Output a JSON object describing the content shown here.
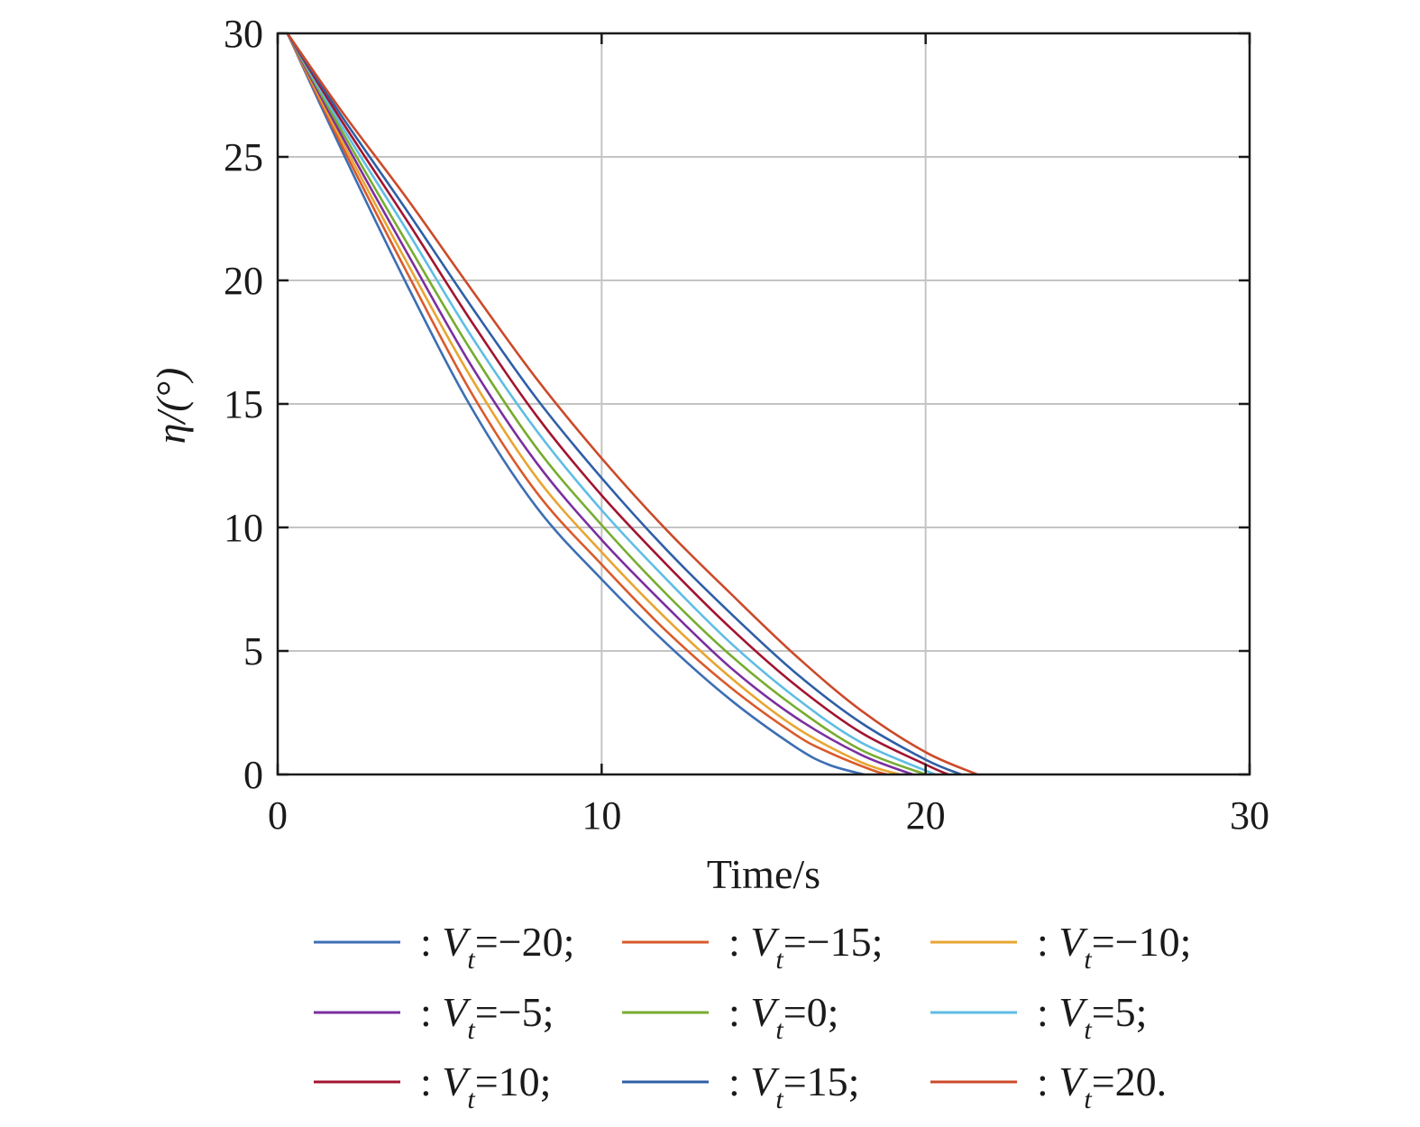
{
  "chart_data": {
    "type": "line",
    "xlabel": "Time/s",
    "ylabel": "η/(°)",
    "xlim": [
      0,
      30
    ],
    "ylim": [
      0,
      30
    ],
    "xticks": [
      0,
      10,
      20,
      30
    ],
    "yticks": [
      0,
      5,
      10,
      15,
      20,
      25,
      30
    ],
    "xtick_labels": [
      "0",
      "10",
      "20",
      "30"
    ],
    "ytick_labels": [
      "0",
      "5",
      "10",
      "15",
      "20",
      "25",
      "30"
    ],
    "grid": true,
    "legend_position": "bottom",
    "series": [
      {
        "name": ": Vt=−20;",
        "label": {
          "prefix": ": ",
          "var": "V",
          "sub": "t",
          "rest": "=−20;"
        },
        "color": "#3d6eb4",
        "x": [
          0.3,
          2,
          4,
          6,
          8,
          10,
          12,
          14,
          16,
          17,
          18.1
        ],
        "y": [
          30,
          25.2,
          19.8,
          14.8,
          10.8,
          7.9,
          5.3,
          3.0,
          1.1,
          0.4,
          0
        ]
      },
      {
        "name": ": Vt=−15;",
        "label": {
          "prefix": ": ",
          "var": "V",
          "sub": "t",
          "rest": "=−15;"
        },
        "color": "#d95a2b",
        "x": [
          0.3,
          2,
          4,
          6,
          8,
          10,
          12,
          14,
          16,
          17,
          18.3,
          18.8
        ],
        "y": [
          30,
          25.4,
          20.3,
          15.4,
          11.4,
          8.5,
          5.8,
          3.5,
          1.6,
          0.9,
          0.2,
          0
        ]
      },
      {
        "name": ": Vt=−10;",
        "label": {
          "prefix": ": ",
          "var": "V",
          "sub": "t",
          "rest": "=−10;"
        },
        "color": "#e8a532",
        "x": [
          0.3,
          2,
          4,
          6,
          8,
          10,
          12,
          14,
          16,
          18,
          19.2
        ],
        "y": [
          30,
          25.6,
          20.7,
          16.0,
          12.0,
          9.0,
          6.3,
          3.9,
          1.9,
          0.5,
          0
        ]
      },
      {
        "name": ": Vt=−5;",
        "label": {
          "prefix": ": ",
          "var": "V",
          "sub": "t",
          "rest": "=−5;"
        },
        "color": "#7b2f9e",
        "x": [
          0.3,
          2,
          4,
          6,
          8,
          10,
          12,
          14,
          16,
          18,
          19.6
        ],
        "y": [
          30,
          25.8,
          21.1,
          16.5,
          12.6,
          9.5,
          6.8,
          4.3,
          2.3,
          0.8,
          0
        ]
      },
      {
        "name": ": Vt=0;",
        "label": {
          "prefix": ": ",
          "var": "V",
          "sub": "t",
          "rest": "=0;"
        },
        "color": "#77ac30",
        "x": [
          0.3,
          2,
          4,
          6,
          8,
          10,
          12,
          14,
          16,
          18,
          20
        ],
        "y": [
          30,
          26.0,
          21.5,
          17.1,
          13.2,
          10.1,
          7.3,
          4.8,
          2.7,
          1.0,
          0
        ]
      },
      {
        "name": ": Vt=5;",
        "label": {
          "prefix": ": ",
          "var": "V",
          "sub": "t",
          "rest": "=5;"
        },
        "color": "#5fbde4",
        "x": [
          0.3,
          2,
          4,
          6,
          8,
          10,
          12,
          14,
          16,
          18,
          20.3
        ],
        "y": [
          30,
          26.2,
          22.0,
          17.7,
          13.9,
          10.7,
          7.9,
          5.3,
          3.1,
          1.3,
          0
        ]
      },
      {
        "name": ": Vt=10;",
        "label": {
          "prefix": ": ",
          "var": "V",
          "sub": "t",
          "rest": "=10;"
        },
        "color": "#a2142f",
        "x": [
          0.3,
          2,
          4,
          6,
          8,
          10,
          12,
          14,
          16,
          18,
          20,
          20.7
        ],
        "y": [
          30,
          26.4,
          22.4,
          18.3,
          14.5,
          11.3,
          8.5,
          5.9,
          3.6,
          1.7,
          0.4,
          0
        ]
      },
      {
        "name": ": Vt=15;",
        "label": {
          "prefix": ": ",
          "var": "V",
          "sub": "t",
          "rest": "=15;"
        },
        "color": "#2f5fa6",
        "x": [
          0.3,
          2,
          4,
          6,
          8,
          10,
          12,
          14,
          16,
          18,
          20,
          21.1
        ],
        "y": [
          30,
          26.6,
          22.8,
          18.9,
          15.2,
          12.0,
          9.1,
          6.5,
          4.1,
          2.1,
          0.6,
          0
        ]
      },
      {
        "name": ": Vt=20.",
        "label": {
          "prefix": ": ",
          "var": "V",
          "sub": "t",
          "rest": "=20."
        },
        "color": "#cc4a2a",
        "x": [
          0.3,
          2,
          4,
          6,
          8,
          10,
          12,
          14,
          16,
          18,
          20,
          21.6
        ],
        "y": [
          30,
          26.8,
          23.3,
          19.6,
          16.0,
          12.8,
          9.9,
          7.3,
          4.8,
          2.6,
          0.9,
          0
        ]
      }
    ]
  }
}
